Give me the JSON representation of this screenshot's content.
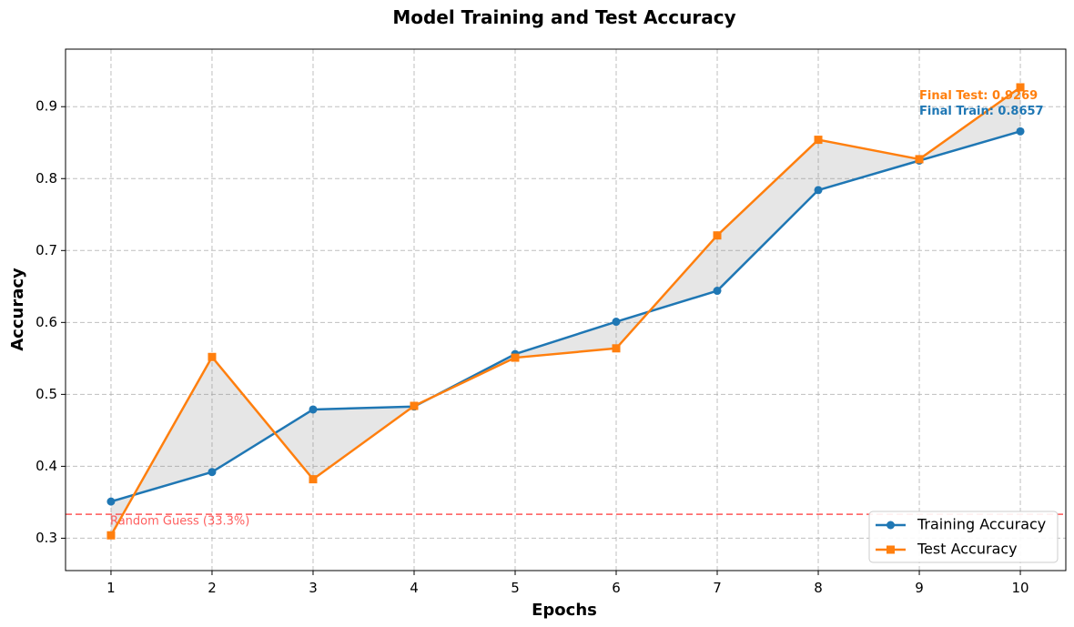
{
  "chart_data": {
    "type": "line",
    "title": "Model Training and Test Accuracy",
    "xlabel": "Epochs",
    "ylabel": "Accuracy",
    "x": [
      1,
      2,
      3,
      4,
      5,
      6,
      7,
      8,
      9,
      10
    ],
    "xlim": [
      0.55,
      10.45
    ],
    "ylim": [
      0.255,
      0.98
    ],
    "yticks": [
      0.3,
      0.4,
      0.5,
      0.6,
      0.7,
      0.8,
      0.9
    ],
    "ytick_labels": [
      "0.3",
      "0.4",
      "0.5",
      "0.6",
      "0.7",
      "0.8",
      "0.9"
    ],
    "xtick_labels": [
      "1",
      "2",
      "3",
      "4",
      "5",
      "6",
      "7",
      "8",
      "9",
      "10"
    ],
    "grid": true,
    "legend_position": "lower-right",
    "fill_between": true,
    "series": [
      {
        "name": "Training Accuracy",
        "color": "#1f77b4",
        "marker": "circle",
        "values": [
          0.351,
          0.392,
          0.479,
          0.483,
          0.556,
          0.601,
          0.644,
          0.784,
          0.825,
          0.8657
        ]
      },
      {
        "name": "Test Accuracy",
        "color": "#ff7f0e",
        "marker": "square",
        "values": [
          0.304,
          0.552,
          0.382,
          0.484,
          0.551,
          0.564,
          0.721,
          0.854,
          0.827,
          0.9269
        ]
      }
    ],
    "baseline": {
      "value": 0.3333,
      "label": "Random Guess (33.3%)",
      "color": "#ff4444"
    },
    "annotations": [
      {
        "text": "Final Test: 0.9269",
        "color": "#ff7f0e"
      },
      {
        "text": "Final Train: 0.8657",
        "color": "#1f77b4"
      }
    ]
  }
}
